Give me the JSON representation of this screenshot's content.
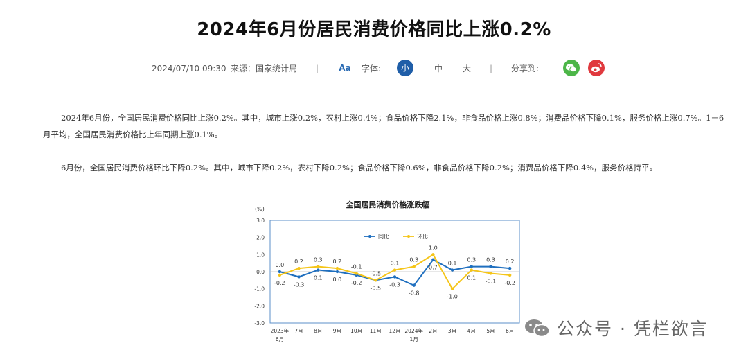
{
  "article": {
    "title": "2024年6月份居民消费价格同比上涨0.2%",
    "date": "2024/07/10 09:30",
    "source": "来源：国家统计局",
    "separator": "|",
    "font_icon": "Aa",
    "font_label": "字体:",
    "font_sizes": [
      "小",
      "中",
      "大"
    ],
    "selected_font_size": "小",
    "share_label": "分享到:",
    "share_icons": [
      "wechat-icon",
      "weibo-icon"
    ],
    "paragraphs": [
      "2024年6月份，全国居民消费价格同比上涨0.2%。其中，城市上涨0.2%，农村上涨0.4%；食品价格下降2.1%，非食品价格上涨0.8%；消费品价格下降0.1%，服务价格上涨0.7%。1－6月平均，全国居民消费价格比上年同期上涨0.1%。",
      "6月份，全国居民消费价格环比下降0.2%。其中，城市下降0.2%，农村下降0.2%；食品价格下降0.6%，非食品价格下降0.2%；消费品价格下降0.4%，服务价格持平。"
    ]
  },
  "watermark": {
    "text": "公众号 · 凭栏欲言",
    "icon": "wechat-logo-icon"
  },
  "colors": {
    "yoy": "#1f6fbf",
    "mom": "#f5c518",
    "plot_border": "#5b8fc9",
    "selected_size": "#1f5ea8"
  },
  "chart_data": {
    "type": "line",
    "title": "全国居民消费价格涨跌幅",
    "unit_label": "(%)",
    "ylim": [
      -3.0,
      3.0
    ],
    "yticks": [
      "3.0",
      "2.0",
      "1.0",
      "0.0",
      "-1.0",
      "-2.0",
      "-3.0"
    ],
    "categories": [
      [
        "2023年",
        "6月"
      ],
      [
        "7月"
      ],
      [
        "8月"
      ],
      [
        "9月"
      ],
      [
        "10月"
      ],
      [
        "11月"
      ],
      [
        "12月"
      ],
      [
        "2024年",
        "1月"
      ],
      [
        "2月"
      ],
      [
        "3月"
      ],
      [
        "4月"
      ],
      [
        "5月"
      ],
      [
        "6月"
      ]
    ],
    "legend_position": "top",
    "series": [
      {
        "name": "同比",
        "color": "#1f6fbf",
        "values": [
          0.0,
          -0.3,
          0.1,
          0.0,
          -0.2,
          -0.5,
          -0.3,
          -0.8,
          0.7,
          0.1,
          0.3,
          0.3,
          0.2
        ],
        "labels": [
          "0.0",
          "-0.3",
          "0.1",
          "0.0",
          "-0.2",
          "-0.5",
          "-0.3",
          "-0.8",
          "0.7",
          "0.1",
          "0.3",
          "0.3",
          "0.2"
        ]
      },
      {
        "name": "环比",
        "color": "#f5c518",
        "values": [
          -0.2,
          0.2,
          0.3,
          0.2,
          -0.1,
          -0.5,
          0.1,
          0.3,
          1.0,
          -1.0,
          0.1,
          -0.1,
          -0.2
        ],
        "labels": [
          "-0.2",
          "0.2",
          "0.3",
          "0.2",
          "-0.1",
          "-0.5",
          "0.1",
          "0.3",
          "1.0",
          "-1.0",
          "0.1",
          "-0.1",
          "-0.2"
        ]
      }
    ]
  }
}
